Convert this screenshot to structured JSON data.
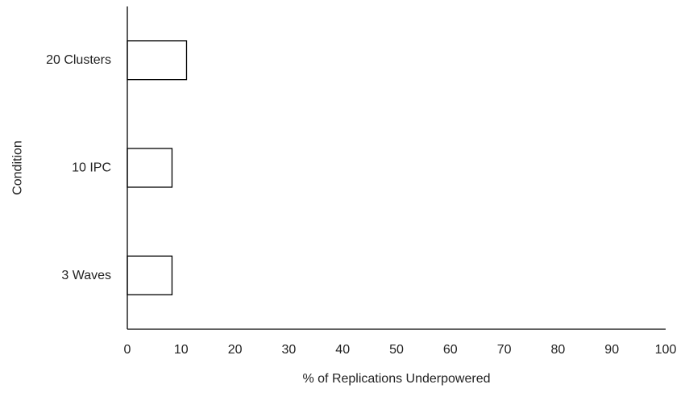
{
  "chart_data": {
    "type": "bar",
    "orientation": "horizontal",
    "categories": [
      "20 Clusters",
      "10 IPC",
      "3 Waves"
    ],
    "values": [
      11,
      8.3,
      8.3
    ],
    "title": "",
    "xlabel": "% of Replications Underpowered",
    "ylabel": "Condition",
    "xlim": [
      0,
      100
    ],
    "xticks": [
      "0",
      "10",
      "20",
      "30",
      "40",
      "50",
      "60",
      "70",
      "80",
      "90",
      "100"
    ],
    "grid": false,
    "legend": "none",
    "colors": {
      "bar_fill": "#ffffff",
      "bar_stroke": "#000000",
      "axis": "#000000"
    }
  }
}
